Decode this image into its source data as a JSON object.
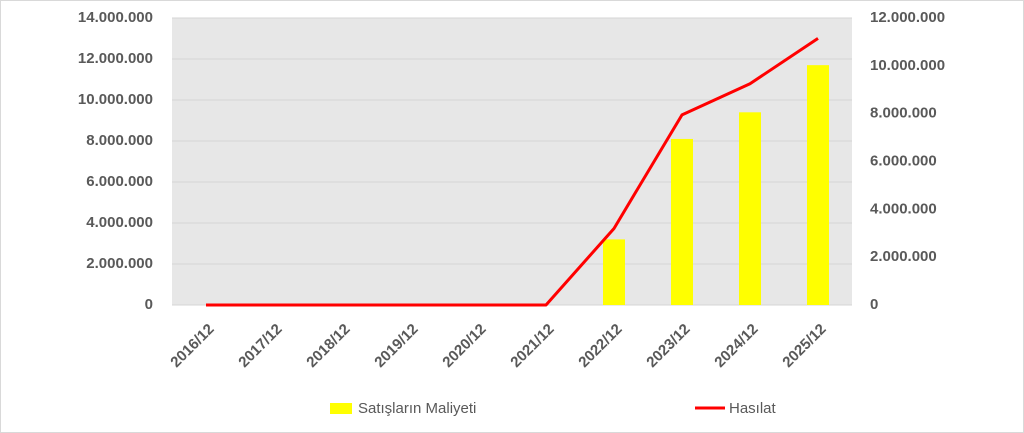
{
  "chart_data": {
    "type": "bar_line",
    "categories": [
      "2016/12",
      "2017/12",
      "2018/12",
      "2019/12",
      "2020/12",
      "2021/12",
      "2022/12",
      "2023/12",
      "2024/12",
      "2025/12"
    ],
    "series": [
      {
        "name": "Satışların Maliyeti",
        "type": "bar",
        "color": "#ffff00",
        "values": [
          0,
          0,
          0,
          0,
          0,
          0,
          3200000,
          8100000,
          9400000,
          11700000
        ]
      },
      {
        "name": "Hasılat",
        "type": "line",
        "axis": "y2",
        "color": "#ff0000",
        "values": [
          0,
          0,
          0,
          0,
          0,
          0,
          3200000,
          7950000,
          9250000,
          11150000
        ]
      }
    ],
    "ylim": [
      0,
      14000000
    ],
    "yticks": [
      0,
      {
        "value": 2000000,
        "label": "2.000.000"
      },
      {
        "value": 4000000,
        "label": "4.000.000"
      },
      {
        "value": 6000000,
        "label": "6.000.000"
      },
      {
        "value": 8000000,
        "label": "8.000.000"
      },
      {
        "value": 10000000,
        "label": "10.000.000"
      },
      {
        "value": 12000000,
        "label": "12.000.000"
      },
      {
        "value": 14000000,
        "label": "14.000.000"
      }
    ],
    "y2lim": [
      0,
      12000000
    ],
    "y2ticks": [
      0,
      {
        "value": 2000000,
        "label": "2.000.000"
      },
      {
        "value": 4000000,
        "label": "4.000.000"
      },
      {
        "value": 6000000,
        "label": "6.000.000"
      },
      {
        "value": 8000000,
        "label": "8.000.000"
      },
      {
        "value": 10000000,
        "label": "10.000.000"
      },
      {
        "value": 12000000,
        "label": "12.000.000"
      }
    ],
    "grid": true
  }
}
